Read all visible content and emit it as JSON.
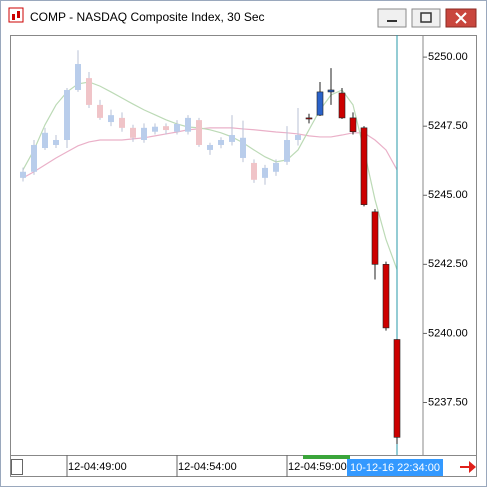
{
  "window": {
    "title": "COMP - NASDAQ Composite Index, 30 Sec"
  },
  "chart_data": {
    "type": "candlestick",
    "categories": [
      null,
      null,
      null,
      null,
      "12-04:49:00",
      null,
      null,
      null,
      null,
      null,
      null,
      null,
      null,
      null,
      "12-04:54:00",
      null,
      null,
      null,
      null,
      null,
      null,
      null,
      null,
      null,
      "12-04:59:00",
      null,
      null,
      null,
      null,
      null,
      null,
      null,
      null,
      null,
      "10-12-16 22:34:00"
    ],
    "ylim": [
      5235.6,
      5250.8
    ],
    "yticks": [
      {
        "value": 5250,
        "label": "5250.00"
      },
      {
        "value": 5247.5,
        "label": "5247.50"
      },
      {
        "value": 5245,
        "label": "5245.00"
      },
      {
        "value": 5242.5,
        "label": "5242.50"
      },
      {
        "value": 5240,
        "label": "5240.00"
      },
      {
        "value": 5237.5,
        "label": "5237.50"
      }
    ],
    "series": [
      {
        "up_color": "#b9cdeb",
        "down_color": "#f0c4c8",
        "wick_color": "#b8c2d6",
        "open": [
          5245.63,
          5245.85,
          5246.71,
          5246.82,
          5247.0,
          5248.81,
          5249.24,
          5248.27,
          5247.65,
          5247.8,
          5247.44,
          5247.0,
          5247.3,
          5247.5,
          5247.3,
          5247.3,
          5247.72,
          5246.64,
          5246.82,
          5246.93,
          5246.35,
          5246.17,
          5245.63,
          5245.85,
          5246.21,
          5247.0,
          null,
          null,
          null,
          null,
          null,
          null,
          null,
          null,
          null
        ],
        "high": [
          5246.0,
          5247.0,
          5247.44,
          5247.18,
          5248.88,
          5250.25,
          5249.46,
          5248.45,
          5248.1,
          5248.0,
          5247.55,
          5247.6,
          5247.6,
          5247.6,
          5247.72,
          5247.9,
          5247.8,
          5246.9,
          5247.1,
          5247.9,
          5247.7,
          5246.3,
          5246.1,
          5246.3,
          5247.5,
          5248.16,
          null,
          null,
          null,
          null,
          null,
          null,
          null,
          null,
          null
        ],
        "low": [
          5245.5,
          5245.74,
          5246.64,
          5246.71,
          5246.71,
          5248.74,
          5248.16,
          5247.73,
          5247.5,
          5247.3,
          5246.93,
          5246.9,
          5247.2,
          5247.2,
          5247.2,
          5247.2,
          5246.75,
          5246.46,
          5246.7,
          5246.8,
          5246.2,
          5245.45,
          5245.38,
          5245.7,
          5246.1,
          5246.8,
          null,
          null,
          null,
          null,
          null,
          null,
          null,
          null,
          null
        ],
        "close": [
          5245.85,
          5246.82,
          5247.26,
          5247.0,
          5248.81,
          5249.75,
          5248.27,
          5247.8,
          5247.9,
          5247.44,
          5247.08,
          5247.44,
          5247.48,
          5247.36,
          5247.58,
          5247.8,
          5246.82,
          5246.82,
          5247.0,
          5247.18,
          5247.08,
          5245.56,
          5245.99,
          5246.17,
          5247.0,
          5247.18,
          null,
          null,
          null,
          null,
          null,
          null,
          null,
          null,
          null
        ]
      },
      {
        "up_color": "#2a62c9",
        "down_color": "#cc0000",
        "wick_color": "#222222",
        "open": [
          null,
          null,
          null,
          null,
          null,
          null,
          null,
          null,
          null,
          null,
          null,
          null,
          null,
          null,
          null,
          null,
          null,
          null,
          null,
          null,
          null,
          null,
          null,
          null,
          null,
          null,
          5247.8,
          5247.9,
          5248.74,
          5248.7,
          5247.8,
          5247.44,
          5244.4,
          5242.5,
          5239.78
        ],
        "high": [
          null,
          null,
          null,
          null,
          null,
          null,
          null,
          null,
          null,
          null,
          null,
          null,
          null,
          null,
          null,
          null,
          null,
          null,
          null,
          null,
          null,
          null,
          null,
          null,
          null,
          null,
          5247.95,
          5249.1,
          5249.6,
          5248.88,
          5248.0,
          5247.5,
          5244.5,
          5242.6,
          5239.8
        ],
        "low": [
          null,
          null,
          null,
          null,
          null,
          null,
          null,
          null,
          null,
          null,
          null,
          null,
          null,
          null,
          null,
          null,
          null,
          null,
          null,
          null,
          null,
          null,
          null,
          null,
          null,
          null,
          5247.6,
          5247.87,
          5248.27,
          5247.76,
          5247.2,
          5244.6,
          5241.95,
          5240.1,
          5236.0
        ],
        "close": [
          null,
          null,
          null,
          null,
          null,
          null,
          null,
          null,
          null,
          null,
          null,
          null,
          null,
          null,
          null,
          null,
          null,
          null,
          null,
          null,
          null,
          null,
          null,
          null,
          null,
          null,
          5247.76,
          5248.74,
          5248.81,
          5247.8,
          5247.3,
          5244.66,
          5242.5,
          5240.2,
          5236.24
        ]
      }
    ],
    "lines": [
      {
        "color": "#eab0c8",
        "values": [
          5245.63,
          5245.85,
          5246.1,
          5246.35,
          5246.57,
          5246.79,
          5246.93,
          5247.0,
          5247.0,
          5247.0,
          5247.04,
          5247.08,
          5247.15,
          5247.22,
          5247.29,
          5247.37,
          5247.4,
          5247.44,
          5247.44,
          5247.44,
          5247.4,
          5247.37,
          5247.33,
          5247.29,
          5247.26,
          5247.22,
          5247.15,
          5247.11,
          5247.11,
          5247.18,
          5247.26,
          5247.26,
          5247.0,
          5246.64,
          5245.92
        ]
      },
      {
        "color": "#bcdab6",
        "values": [
          5245.92,
          5246.64,
          5247.55,
          5248.27,
          5248.74,
          5249.03,
          5249.1,
          5248.95,
          5248.74,
          5248.52,
          5248.3,
          5248.09,
          5247.91,
          5247.73,
          5247.58,
          5247.47,
          5247.44,
          5247.37,
          5247.26,
          5247.11,
          5246.9,
          5246.64,
          5246.39,
          5246.21,
          5246.28,
          5246.64,
          5247.37,
          5248.09,
          5248.63,
          5248.81,
          5248.27,
          5246.64,
          5244.84,
          5243.4,
          5242.31
        ]
      }
    ]
  }
}
